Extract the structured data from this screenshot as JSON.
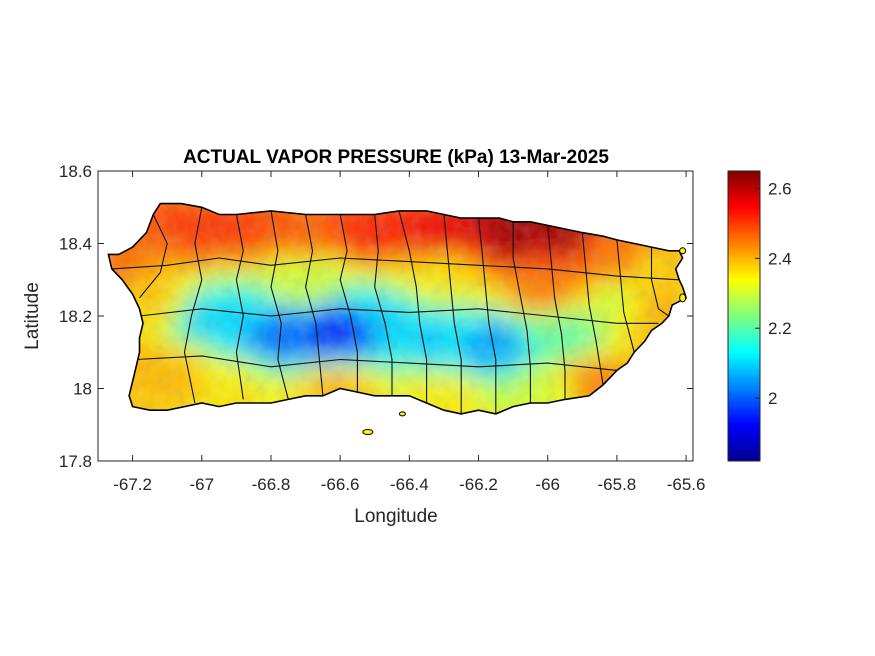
{
  "chart_data": {
    "type": "heatmap",
    "title": "ACTUAL VAPOR PRESSURE (kPa) 13-Mar-2025",
    "xlabel": "Longitude",
    "ylabel": "Latitude",
    "xlim": [
      -67.3,
      -65.58
    ],
    "ylim": [
      17.8,
      18.6
    ],
    "xticks": [
      -67.2,
      -67,
      -66.8,
      -66.6,
      -66.4,
      -66.2,
      -66,
      -65.8,
      -65.6
    ],
    "xtick_labels": [
      "-67.2",
      "-67",
      "-66.8",
      "-66.6",
      "-66.4",
      "-66.2",
      "-66",
      "-65.8",
      "-65.6"
    ],
    "yticks": [
      17.8,
      18,
      18.2,
      18.4,
      18.6
    ],
    "ytick_labels": [
      "17.8",
      "18",
      "18.2",
      "18.4",
      "18.6"
    ],
    "colorbar": {
      "colormap": "jet",
      "clim": [
        1.82,
        2.65
      ],
      "ticks": [
        2,
        2.2,
        2.4,
        2.6
      ],
      "tick_labels": [
        "2",
        "2.2",
        "2.4",
        "2.6"
      ]
    },
    "field_anchors": [
      {
        "lon": -67.25,
        "lat": 18.35,
        "value": 2.45
      },
      {
        "lon": -67.05,
        "lat": 18.46,
        "value": 2.5
      },
      {
        "lon": -66.9,
        "lat": 18.45,
        "value": 2.5
      },
      {
        "lon": -66.7,
        "lat": 18.45,
        "value": 2.48
      },
      {
        "lon": -66.5,
        "lat": 18.44,
        "value": 2.52
      },
      {
        "lon": -66.3,
        "lat": 18.44,
        "value": 2.55
      },
      {
        "lon": -66.1,
        "lat": 18.44,
        "value": 2.63
      },
      {
        "lon": -65.95,
        "lat": 18.43,
        "value": 2.62
      },
      {
        "lon": -65.8,
        "lat": 18.38,
        "value": 2.45
      },
      {
        "lon": -65.65,
        "lat": 18.33,
        "value": 2.38
      },
      {
        "lon": -67.15,
        "lat": 18.25,
        "value": 2.38
      },
      {
        "lon": -66.95,
        "lat": 18.2,
        "value": 2.1
      },
      {
        "lon": -66.75,
        "lat": 18.15,
        "value": 2.0
      },
      {
        "lon": -66.6,
        "lat": 18.16,
        "value": 1.93
      },
      {
        "lon": -66.45,
        "lat": 18.18,
        "value": 2.1
      },
      {
        "lon": -66.3,
        "lat": 18.15,
        "value": 2.1
      },
      {
        "lon": -66.15,
        "lat": 18.12,
        "value": 2.05
      },
      {
        "lon": -65.95,
        "lat": 18.15,
        "value": 2.2
      },
      {
        "lon": -65.8,
        "lat": 18.22,
        "value": 2.3
      },
      {
        "lon": -65.7,
        "lat": 18.2,
        "value": 2.4
      },
      {
        "lon": -66.3,
        "lat": 18.3,
        "value": 2.35
      },
      {
        "lon": -66.0,
        "lat": 18.28,
        "value": 2.45
      },
      {
        "lon": -66.7,
        "lat": 18.3,
        "value": 2.3
      },
      {
        "lon": -67.1,
        "lat": 18.05,
        "value": 2.4
      },
      {
        "lon": -66.9,
        "lat": 18.0,
        "value": 2.35
      },
      {
        "lon": -66.6,
        "lat": 18.0,
        "value": 2.4
      },
      {
        "lon": -66.3,
        "lat": 17.98,
        "value": 2.35
      },
      {
        "lon": -66.0,
        "lat": 18.0,
        "value": 2.3
      },
      {
        "lon": -65.85,
        "lat": 18.02,
        "value": 2.45
      }
    ]
  }
}
